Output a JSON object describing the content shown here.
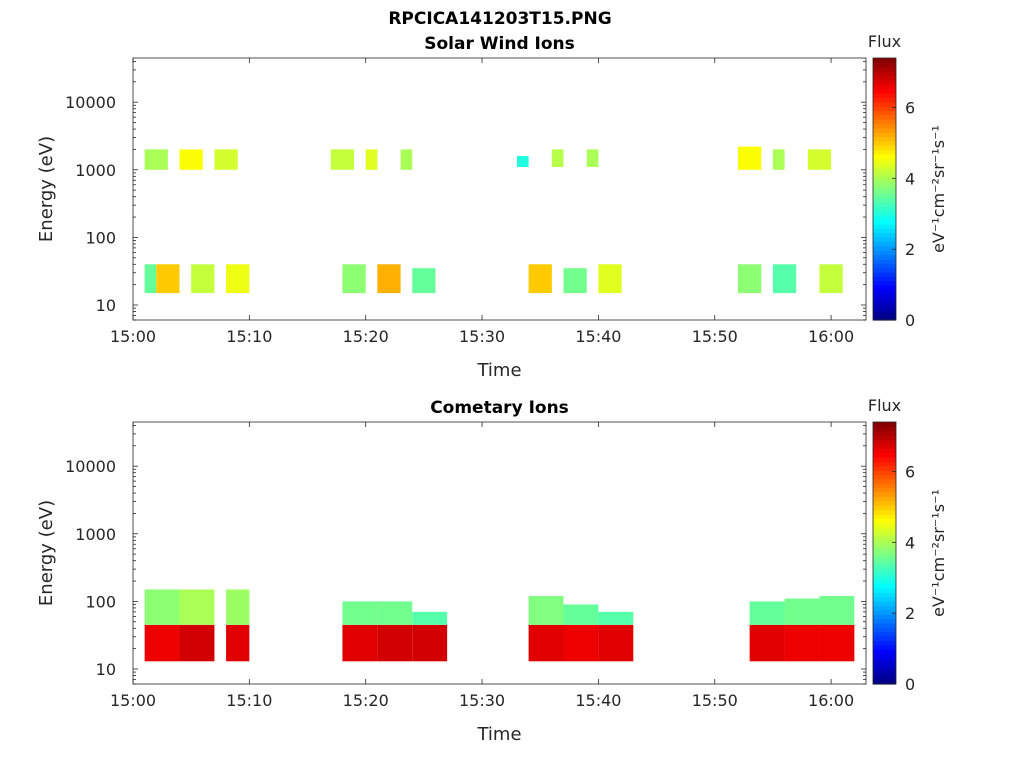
{
  "figure": {
    "title": "RPCICA141203T15.PNG"
  },
  "chart_data": [
    {
      "type": "heatmap",
      "title": "Solar Wind Ions",
      "xlabel": "Time",
      "ylabel": "Energy (eV)",
      "yscale": "log",
      "ylim": [
        6,
        45000
      ],
      "xlim": [
        "15:00",
        "16:03"
      ],
      "x_ticks": [
        "15:00",
        "15:10",
        "15:20",
        "15:30",
        "15:40",
        "15:50",
        "16:00"
      ],
      "y_ticks": [
        {
          "value": 10,
          "label": "10"
        },
        {
          "value": 100,
          "label": "100"
        },
        {
          "value": 1000,
          "label": "1000"
        },
        {
          "value": 10000,
          "label": "10000"
        }
      ],
      "colorbar": {
        "title": "Flux",
        "units_label": "eV⁻¹cm⁻²sr⁻¹s⁻¹",
        "range": [
          0,
          7.4
        ],
        "ticks": [
          0,
          2,
          4,
          6
        ],
        "colormap": "jet"
      },
      "grid": false,
      "blocks": [
        {
          "t0": "15:01",
          "t1": "15:02",
          "e0": 15,
          "e1": 40,
          "flux": 3.5
        },
        {
          "t0": "15:02",
          "t1": "15:04",
          "e0": 15,
          "e1": 40,
          "flux": 5.0
        },
        {
          "t0": "15:05",
          "t1": "15:07",
          "e0": 15,
          "e1": 40,
          "flux": 4.2
        },
        {
          "t0": "15:08",
          "t1": "15:10",
          "e0": 15,
          "e1": 40,
          "flux": 4.5
        },
        {
          "t0": "15:18",
          "t1": "15:20",
          "e0": 15,
          "e1": 40,
          "flux": 3.8
        },
        {
          "t0": "15:21",
          "t1": "15:23",
          "e0": 15,
          "e1": 40,
          "flux": 5.2
        },
        {
          "t0": "15:24",
          "t1": "15:26",
          "e0": 15,
          "e1": 35,
          "flux": 3.5
        },
        {
          "t0": "15:34",
          "t1": "15:36",
          "e0": 15,
          "e1": 40,
          "flux": 5.0
        },
        {
          "t0": "15:37",
          "t1": "15:39",
          "e0": 15,
          "e1": 35,
          "flux": 3.6
        },
        {
          "t0": "15:40",
          "t1": "15:42",
          "e0": 15,
          "e1": 40,
          "flux": 4.4
        },
        {
          "t0": "15:52",
          "t1": "15:54",
          "e0": 15,
          "e1": 40,
          "flux": 3.8
        },
        {
          "t0": "15:55",
          "t1": "15:57",
          "e0": 15,
          "e1": 40,
          "flux": 3.4
        },
        {
          "t0": "15:59",
          "t1": "16:01",
          "e0": 15,
          "e1": 40,
          "flux": 4.2
        },
        {
          "t0": "15:01",
          "t1": "15:03",
          "e0": 1000,
          "e1": 2000,
          "flux": 4.0
        },
        {
          "t0": "15:04",
          "t1": "15:06",
          "e0": 1000,
          "e1": 2000,
          "flux": 4.6
        },
        {
          "t0": "15:07",
          "t1": "15:09",
          "e0": 1000,
          "e1": 2000,
          "flux": 4.3
        },
        {
          "t0": "15:17",
          "t1": "15:19",
          "e0": 1000,
          "e1": 2000,
          "flux": 4.2
        },
        {
          "t0": "15:20",
          "t1": "15:21",
          "e0": 1000,
          "e1": 2000,
          "flux": 4.4
        },
        {
          "t0": "15:23",
          "t1": "15:24",
          "e0": 1000,
          "e1": 2000,
          "flux": 4.0
        },
        {
          "t0": "15:33",
          "t1": "15:34",
          "e0": 1100,
          "e1": 1600,
          "flux": 3.0
        },
        {
          "t0": "15:36",
          "t1": "15:37",
          "e0": 1100,
          "e1": 2000,
          "flux": 4.1
        },
        {
          "t0": "15:39",
          "t1": "15:40",
          "e0": 1100,
          "e1": 2000,
          "flux": 4.0
        },
        {
          "t0": "15:52",
          "t1": "15:54",
          "e0": 1000,
          "e1": 2200,
          "flux": 4.6
        },
        {
          "t0": "15:55",
          "t1": "15:56",
          "e0": 1000,
          "e1": 2000,
          "flux": 4.0
        },
        {
          "t0": "15:58",
          "t1": "16:00",
          "e0": 1000,
          "e1": 2000,
          "flux": 4.3
        }
      ]
    },
    {
      "type": "heatmap",
      "title": "Cometary Ions",
      "xlabel": "Time",
      "ylabel": "Energy (eV)",
      "yscale": "log",
      "ylim": [
        6,
        45000
      ],
      "xlim": [
        "15:00",
        "16:03"
      ],
      "x_ticks": [
        "15:00",
        "15:10",
        "15:20",
        "15:30",
        "15:40",
        "15:50",
        "16:00"
      ],
      "y_ticks": [
        {
          "value": 10,
          "label": "10"
        },
        {
          "value": 100,
          "label": "100"
        },
        {
          "value": 1000,
          "label": "1000"
        },
        {
          "value": 10000,
          "label": "10000"
        }
      ],
      "colorbar": {
        "title": "Flux",
        "units_label": "eV⁻¹cm⁻²sr⁻¹s⁻¹",
        "range": [
          0,
          7.4
        ],
        "ticks": [
          0,
          2,
          4,
          6
        ],
        "colormap": "jet"
      },
      "grid": false,
      "blocks": [
        {
          "t0": "15:01",
          "t1": "15:04",
          "e0": 13,
          "e1": 45,
          "flux": 6.6
        },
        {
          "t0": "15:04",
          "t1": "15:07",
          "e0": 13,
          "e1": 45,
          "flux": 6.8
        },
        {
          "t0": "15:08",
          "t1": "15:10",
          "e0": 13,
          "e1": 45,
          "flux": 6.7
        },
        {
          "t0": "15:18",
          "t1": "15:21",
          "e0": 13,
          "e1": 45,
          "flux": 6.7
        },
        {
          "t0": "15:21",
          "t1": "15:24",
          "e0": 13,
          "e1": 45,
          "flux": 6.8
        },
        {
          "t0": "15:24",
          "t1": "15:27",
          "e0": 13,
          "e1": 45,
          "flux": 6.8
        },
        {
          "t0": "15:34",
          "t1": "15:37",
          "e0": 13,
          "e1": 45,
          "flux": 6.7
        },
        {
          "t0": "15:37",
          "t1": "15:40",
          "e0": 13,
          "e1": 45,
          "flux": 6.6
        },
        {
          "t0": "15:40",
          "t1": "15:43",
          "e0": 13,
          "e1": 45,
          "flux": 6.7
        },
        {
          "t0": "15:53",
          "t1": "15:56",
          "e0": 13,
          "e1": 45,
          "flux": 6.7
        },
        {
          "t0": "15:56",
          "t1": "15:59",
          "e0": 13,
          "e1": 45,
          "flux": 6.6
        },
        {
          "t0": "15:59",
          "t1": "16:02",
          "e0": 13,
          "e1": 45,
          "flux": 6.6
        },
        {
          "t0": "15:01",
          "t1": "15:04",
          "e0": 45,
          "e1": 150,
          "flux": 3.8
        },
        {
          "t0": "15:04",
          "t1": "15:07",
          "e0": 45,
          "e1": 150,
          "flux": 4.0
        },
        {
          "t0": "15:08",
          "t1": "15:10",
          "e0": 45,
          "e1": 150,
          "flux": 3.9
        },
        {
          "t0": "15:18",
          "t1": "15:21",
          "e0": 45,
          "e1": 100,
          "flux": 3.6
        },
        {
          "t0": "15:21",
          "t1": "15:24",
          "e0": 45,
          "e1": 100,
          "flux": 3.6
        },
        {
          "t0": "15:24",
          "t1": "15:27",
          "e0": 45,
          "e1": 70,
          "flux": 3.4
        },
        {
          "t0": "15:34",
          "t1": "15:37",
          "e0": 45,
          "e1": 120,
          "flux": 3.7
        },
        {
          "t0": "15:37",
          "t1": "15:40",
          "e0": 45,
          "e1": 90,
          "flux": 3.5
        },
        {
          "t0": "15:40",
          "t1": "15:43",
          "e0": 45,
          "e1": 70,
          "flux": 3.4
        },
        {
          "t0": "15:53",
          "t1": "15:56",
          "e0": 45,
          "e1": 100,
          "flux": 3.5
        },
        {
          "t0": "15:56",
          "t1": "15:59",
          "e0": 45,
          "e1": 110,
          "flux": 3.6
        },
        {
          "t0": "15:59",
          "t1": "16:02",
          "e0": 45,
          "e1": 120,
          "flux": 3.6
        }
      ]
    }
  ]
}
